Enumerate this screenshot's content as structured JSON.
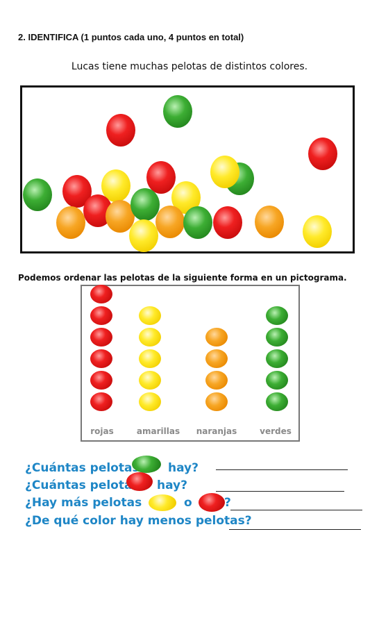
{
  "exercise": {
    "heading": "2. IDENTIFICA (1 puntos cada uno, 4 puntos en total)",
    "intro": "Lucas tiene muchas pelotas de distintos colores.",
    "pictogram_intro": "Podemos ordenar las pelotas de la siguiente forma en un pictograma."
  },
  "pictogram": {
    "categories": [
      {
        "label": "rojas",
        "color": "red",
        "count": 6
      },
      {
        "label": "amarillas",
        "color": "yellow",
        "count": 5
      },
      {
        "label": "naranjas",
        "color": "orange",
        "count": 4
      },
      {
        "label": "verdes",
        "color": "green",
        "count": 5
      }
    ]
  },
  "questions": {
    "q1": {
      "before": "¿Cuántas pelotas",
      "after": "hay?",
      "ball": "green"
    },
    "q2": {
      "before": "¿Cuántas pelotas",
      "after": "hay?",
      "ball": "red"
    },
    "q3": {
      "before": "¿Hay más pelotas",
      "connector": "o",
      "end": "?",
      "balls": [
        "yellow",
        "red"
      ]
    },
    "q4": {
      "text": "¿De qué color hay menos pelotas?"
    }
  },
  "colors": {
    "question_text": "#1e86c6",
    "red": "#e01919",
    "green": "#2f9a28",
    "yellow": "#f6dc10",
    "orange": "#f29419"
  }
}
